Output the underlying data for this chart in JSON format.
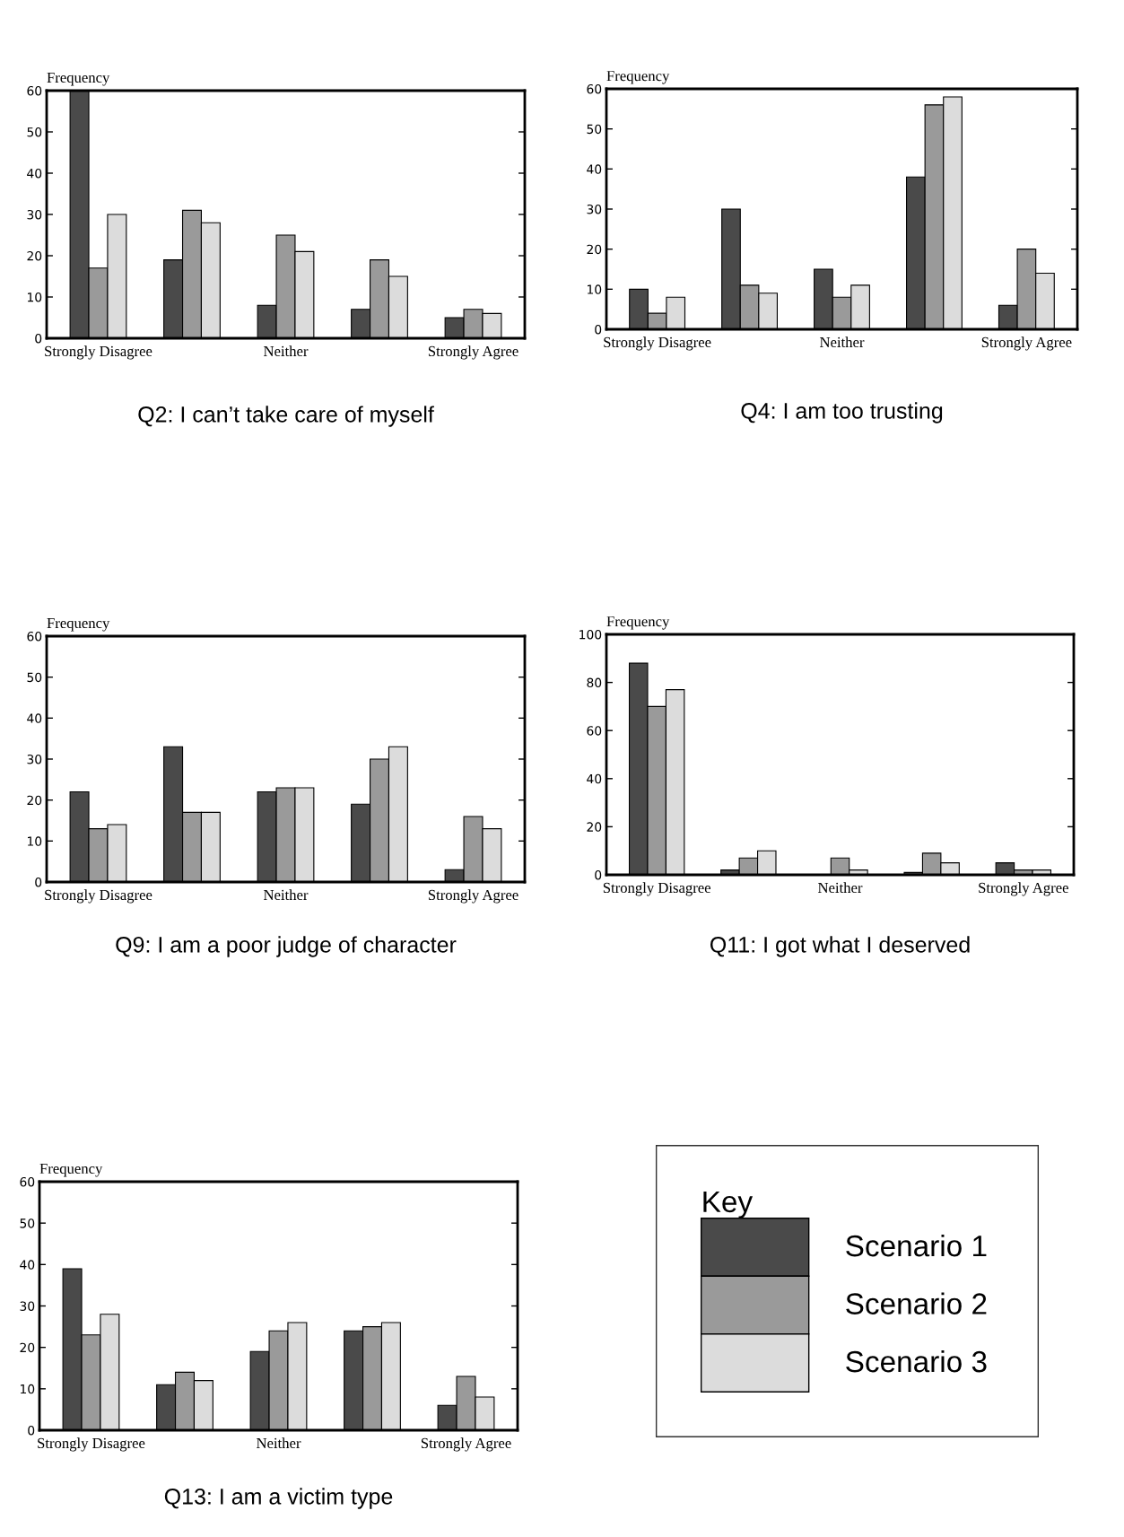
{
  "chart_data": [
    {
      "type": "bar",
      "title": "Q2: I can’t take care of myself",
      "ylabel": "Frequency",
      "categories": [
        "Strongly Disagree",
        null,
        "Neither",
        null,
        "Strongly Agree"
      ],
      "ylim": [
        0,
        60
      ],
      "yticks": [
        0,
        10,
        20,
        30,
        40,
        50,
        60
      ],
      "grid": false,
      "legend": "bottom right",
      "legend_title": "Key",
      "series": [
        {
          "name": "Scenario 1",
          "color": "#4a4a4a",
          "values": [
            60,
            19,
            8,
            7,
            5
          ]
        },
        {
          "name": "Scenario 2",
          "color": "#9a9a9a",
          "values": [
            17,
            31,
            25,
            19,
            7
          ]
        },
        {
          "name": "Scenario 3",
          "color": "#dcdcdc",
          "values": [
            30,
            28,
            21,
            15,
            6
          ]
        }
      ]
    },
    {
      "type": "bar",
      "title": "Q4: I am too trusting",
      "ylabel": "Frequency",
      "categories": [
        "Strongly Disagree",
        null,
        "Neither",
        null,
        "Strongly Agree"
      ],
      "ylim": [
        0,
        60
      ],
      "yticks": [
        0,
        10,
        20,
        30,
        40,
        50,
        60
      ],
      "grid": false,
      "series": [
        {
          "color": "#4a4a4a",
          "values": [
            10,
            30,
            15,
            38,
            6
          ]
        },
        {
          "color": "#9a9a9a",
          "values": [
            4,
            11,
            8,
            56,
            20
          ]
        },
        {
          "color": "#dcdcdc",
          "values": [
            8,
            9,
            11,
            58,
            14
          ]
        }
      ]
    },
    {
      "type": "bar",
      "title": "Q9: I am a poor judge of character",
      "ylabel": "Frequency",
      "categories": [
        "Strongly Disagree",
        null,
        "Neither",
        null,
        "Strongly Agree"
      ],
      "ylim": [
        0,
        60
      ],
      "yticks": [
        0,
        10,
        20,
        30,
        40,
        50,
        60
      ],
      "grid": false,
      "series": [
        {
          "color": "#4a4a4a",
          "values": [
            22,
            33,
            22,
            19,
            3
          ]
        },
        {
          "color": "#9a9a9a",
          "values": [
            13,
            17,
            23,
            30,
            16
          ]
        },
        {
          "color": "#dcdcdc",
          "values": [
            14,
            17,
            23,
            33,
            13
          ]
        }
      ]
    },
    {
      "type": "bar",
      "title": "Q11: I got what I deserved",
      "ylabel": "Frequency",
      "categories": [
        "Strongly Disagree",
        null,
        "Neither",
        null,
        "Strongly Agree"
      ],
      "ylim": [
        0,
        100
      ],
      "yticks": [
        0,
        20,
        40,
        60,
        80,
        100
      ],
      "grid": false,
      "series": [
        {
          "color": "#4a4a4a",
          "values": [
            88,
            2,
            0,
            1,
            5
          ]
        },
        {
          "color": "#9a9a9a",
          "values": [
            70,
            7,
            7,
            9,
            2
          ]
        },
        {
          "color": "#dcdcdc",
          "values": [
            77,
            10,
            2,
            5,
            2
          ]
        }
      ]
    },
    {
      "type": "bar",
      "title": "Q13: I am a victim type",
      "ylabel": "Frequency",
      "categories": [
        "Strongly Disagree",
        null,
        "Neither",
        null,
        "Strongly Agree"
      ],
      "ylim": [
        0,
        60
      ],
      "yticks": [
        0,
        10,
        20,
        30,
        40,
        50,
        60
      ],
      "grid": false,
      "series": [
        {
          "color": "#4a4a4a",
          "values": [
            39,
            11,
            19,
            24,
            6
          ]
        },
        {
          "color": "#9a9a9a",
          "values": [
            23,
            14,
            24,
            25,
            13
          ]
        },
        {
          "color": "#dcdcdc",
          "values": [
            28,
            12,
            26,
            26,
            8
          ]
        }
      ]
    }
  ]
}
